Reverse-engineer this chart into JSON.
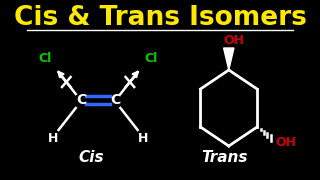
{
  "background_color": "#000000",
  "title": "Cis & Trans Isomers",
  "title_color": "#FFE800",
  "title_fontsize": 19,
  "divider_color": "#FFFFFF",
  "cis_label": "Cis",
  "trans_label": "Trans",
  "label_color": "#FFFFFF",
  "label_fontsize": 11,
  "cl_color": "#00CC00",
  "oh_color": "#CC0000",
  "atom_color": "#FFFFFF",
  "double_bond_color": "#3366FF",
  "fig_w": 3.2,
  "fig_h": 1.8,
  "dpi": 100
}
